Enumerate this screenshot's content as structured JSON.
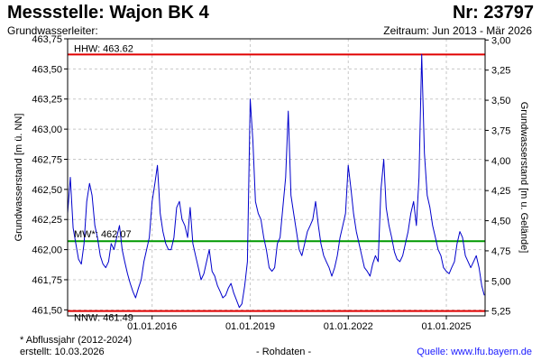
{
  "header": {
    "title": "Messstelle: Wajon BK 4",
    "number": "Nr: 23797",
    "aquifer": "Grundwasserleiter:",
    "period": "Zeitraum: Jun 2013 - Mär 2026"
  },
  "footer": {
    "note": "* Abflussjahr (2012-2024)",
    "created": "erstellt:  10.03.2026",
    "raw": "- Rohdaten -",
    "source": "Quelle:  www.lfu.bayern.de"
  },
  "colors": {
    "series": "#0000cc",
    "extreme": "#e00000",
    "mean": "#009900",
    "grid": "#c8c8c8"
  },
  "chart_data": {
    "type": "line",
    "ylabel": "Grundwasserstand [m ü. NN]",
    "y2label": "Grundwasserstand [m u. Gelände]",
    "ylim": [
      461.45,
      463.75
    ],
    "y2lim": [
      5.29,
      2.99
    ],
    "xlim": [
      "2013-06-01",
      "2026-03-10"
    ],
    "yticks": [
      461.5,
      461.75,
      462.0,
      462.25,
      462.5,
      462.75,
      463.0,
      463.25,
      463.5,
      463.75
    ],
    "ytick_labels": [
      "461,50",
      "461,75",
      "462,00",
      "462,25",
      "462,50",
      "462,75",
      "463,00",
      "463,25",
      "463,50",
      "463,75"
    ],
    "y2ticks": [
      3.0,
      3.25,
      3.5,
      3.75,
      4.0,
      4.25,
      4.5,
      4.75,
      5.0,
      5.25
    ],
    "y2tick_labels": [
      "3,00",
      "3,25",
      "3,50",
      "3,75",
      "4,00",
      "4,25",
      "4,50",
      "4,75",
      "5,00",
      "5,25"
    ],
    "xticks": [
      "2016-01-01",
      "2019-01-01",
      "2022-01-01",
      "2025-01-01"
    ],
    "xtick_labels": [
      "01.01.2016",
      "01.01.2019",
      "01.01.2022",
      "01.01.2025"
    ],
    "grid": true,
    "reference_lines": [
      {
        "key": "hhw",
        "label": "HHW: 463.62",
        "value": 463.62,
        "color": "#e00000"
      },
      {
        "key": "mw",
        "label": "MW*: 462.07",
        "value": 462.07,
        "color": "#009900"
      },
      {
        "key": "nnw",
        "label": "NNW: 461.49",
        "value": 461.49,
        "color": "#e00000"
      }
    ],
    "series": [
      {
        "x": [
          "2013-06-01",
          "2013-07-01",
          "2013-08-01",
          "2013-09-01",
          "2013-10-01",
          "2013-11-01",
          "2013-12-01",
          "2014-01-01",
          "2014-02-01",
          "2014-03-01",
          "2014-04-01",
          "2014-05-01",
          "2014-06-01",
          "2014-07-01",
          "2014-08-01",
          "2014-09-01",
          "2014-10-01",
          "2014-11-01",
          "2014-12-01",
          "2015-01-01",
          "2015-02-01",
          "2015-03-01",
          "2015-04-01",
          "2015-05-01",
          "2015-06-01",
          "2015-07-01",
          "2015-08-01",
          "2015-09-01",
          "2015-10-01",
          "2015-11-01",
          "2015-12-01",
          "2016-01-01",
          "2016-02-01",
          "2016-03-01",
          "2016-04-01",
          "2016-05-01",
          "2016-06-01",
          "2016-07-01",
          "2016-08-01",
          "2016-09-01",
          "2016-10-01",
          "2016-11-01",
          "2016-12-01",
          "2017-01-01",
          "2017-02-01",
          "2017-03-01",
          "2017-04-01",
          "2017-05-01",
          "2017-06-01",
          "2017-07-01",
          "2017-08-01",
          "2017-09-01",
          "2017-10-01",
          "2017-11-01",
          "2017-12-01",
          "2018-01-01",
          "2018-02-01",
          "2018-03-01",
          "2018-04-01",
          "2018-05-01",
          "2018-06-01",
          "2018-07-01",
          "2018-08-01",
          "2018-09-01",
          "2018-10-01",
          "2018-11-01",
          "2018-12-01",
          "2019-01-01",
          "2019-02-01",
          "2019-03-01",
          "2019-04-01",
          "2019-05-01",
          "2019-06-01",
          "2019-07-01",
          "2019-08-01",
          "2019-09-01",
          "2019-10-01",
          "2019-11-01",
          "2019-12-01",
          "2020-01-01",
          "2020-02-01",
          "2020-03-01",
          "2020-04-01",
          "2020-05-01",
          "2020-06-01",
          "2020-07-01",
          "2020-08-01",
          "2020-09-01",
          "2020-10-01",
          "2020-11-01",
          "2020-12-01",
          "2021-01-01",
          "2021-02-01",
          "2021-03-01",
          "2021-04-01",
          "2021-05-01",
          "2021-06-01",
          "2021-07-01",
          "2021-08-01",
          "2021-09-01",
          "2021-10-01",
          "2021-11-01",
          "2021-12-01",
          "2022-01-01",
          "2022-02-01",
          "2022-03-01",
          "2022-04-01",
          "2022-05-01",
          "2022-06-01",
          "2022-07-01",
          "2022-08-01",
          "2022-09-01",
          "2022-10-01",
          "2022-11-01",
          "2022-12-01",
          "2023-01-01",
          "2023-02-01",
          "2023-03-01",
          "2023-04-01",
          "2023-05-01",
          "2023-06-01",
          "2023-07-01",
          "2023-08-01",
          "2023-09-01",
          "2023-10-01",
          "2023-11-01",
          "2023-12-01",
          "2024-01-01",
          "2024-02-01",
          "2024-03-01",
          "2024-04-01",
          "2024-05-01",
          "2024-06-01",
          "2024-07-01",
          "2024-08-01",
          "2024-09-01",
          "2024-10-01",
          "2024-11-01",
          "2024-12-01",
          "2025-01-01",
          "2025-02-01",
          "2025-03-01",
          "2025-04-01",
          "2025-05-01",
          "2025-06-01",
          "2025-07-01",
          "2025-08-01",
          "2025-09-01",
          "2025-10-01",
          "2025-11-01",
          "2025-12-01",
          "2026-01-01",
          "2026-02-01",
          "2026-03-01"
        ],
        "values": [
          462.3,
          462.6,
          462.18,
          462.05,
          461.92,
          461.88,
          462.05,
          462.4,
          462.55,
          462.45,
          462.2,
          462.1,
          461.95,
          461.88,
          461.85,
          461.9,
          462.05,
          462.0,
          462.1,
          462.2,
          462.0,
          461.9,
          461.8,
          461.72,
          461.65,
          461.6,
          461.68,
          461.75,
          461.9,
          462.0,
          462.1,
          462.4,
          462.55,
          462.7,
          462.3,
          462.15,
          462.05,
          462.0,
          462.0,
          462.1,
          462.35,
          462.4,
          462.25,
          462.2,
          462.1,
          462.35,
          462.05,
          461.95,
          461.85,
          461.75,
          461.8,
          461.9,
          462.0,
          461.82,
          461.78,
          461.7,
          461.65,
          461.6,
          461.62,
          461.68,
          461.72,
          461.64,
          461.58,
          461.52,
          461.55,
          461.7,
          461.9,
          463.25,
          462.9,
          462.4,
          462.3,
          462.25,
          462.1,
          462.0,
          461.85,
          461.82,
          461.85,
          462.05,
          462.1,
          462.35,
          462.6,
          463.15,
          462.45,
          462.3,
          462.15,
          462.0,
          461.95,
          462.05,
          462.15,
          462.2,
          462.25,
          462.4,
          462.2,
          462.05,
          461.95,
          461.9,
          461.85,
          461.78,
          461.85,
          461.95,
          462.1,
          462.2,
          462.3,
          462.7,
          462.5,
          462.3,
          462.15,
          462.05,
          461.95,
          461.85,
          461.82,
          461.78,
          461.88,
          461.95,
          461.9,
          462.5,
          462.75,
          462.35,
          462.2,
          462.1,
          461.98,
          461.92,
          461.9,
          461.95,
          462.05,
          462.15,
          462.3,
          462.4,
          462.2,
          462.6,
          463.62,
          462.8,
          462.45,
          462.35,
          462.2,
          462.1,
          462.0,
          461.95,
          461.85,
          461.82,
          461.8,
          461.85,
          461.9,
          462.05,
          462.15,
          462.1,
          461.95,
          461.9,
          461.85,
          461.9,
          461.95,
          461.85,
          461.7,
          461.62
        ]
      }
    ]
  }
}
